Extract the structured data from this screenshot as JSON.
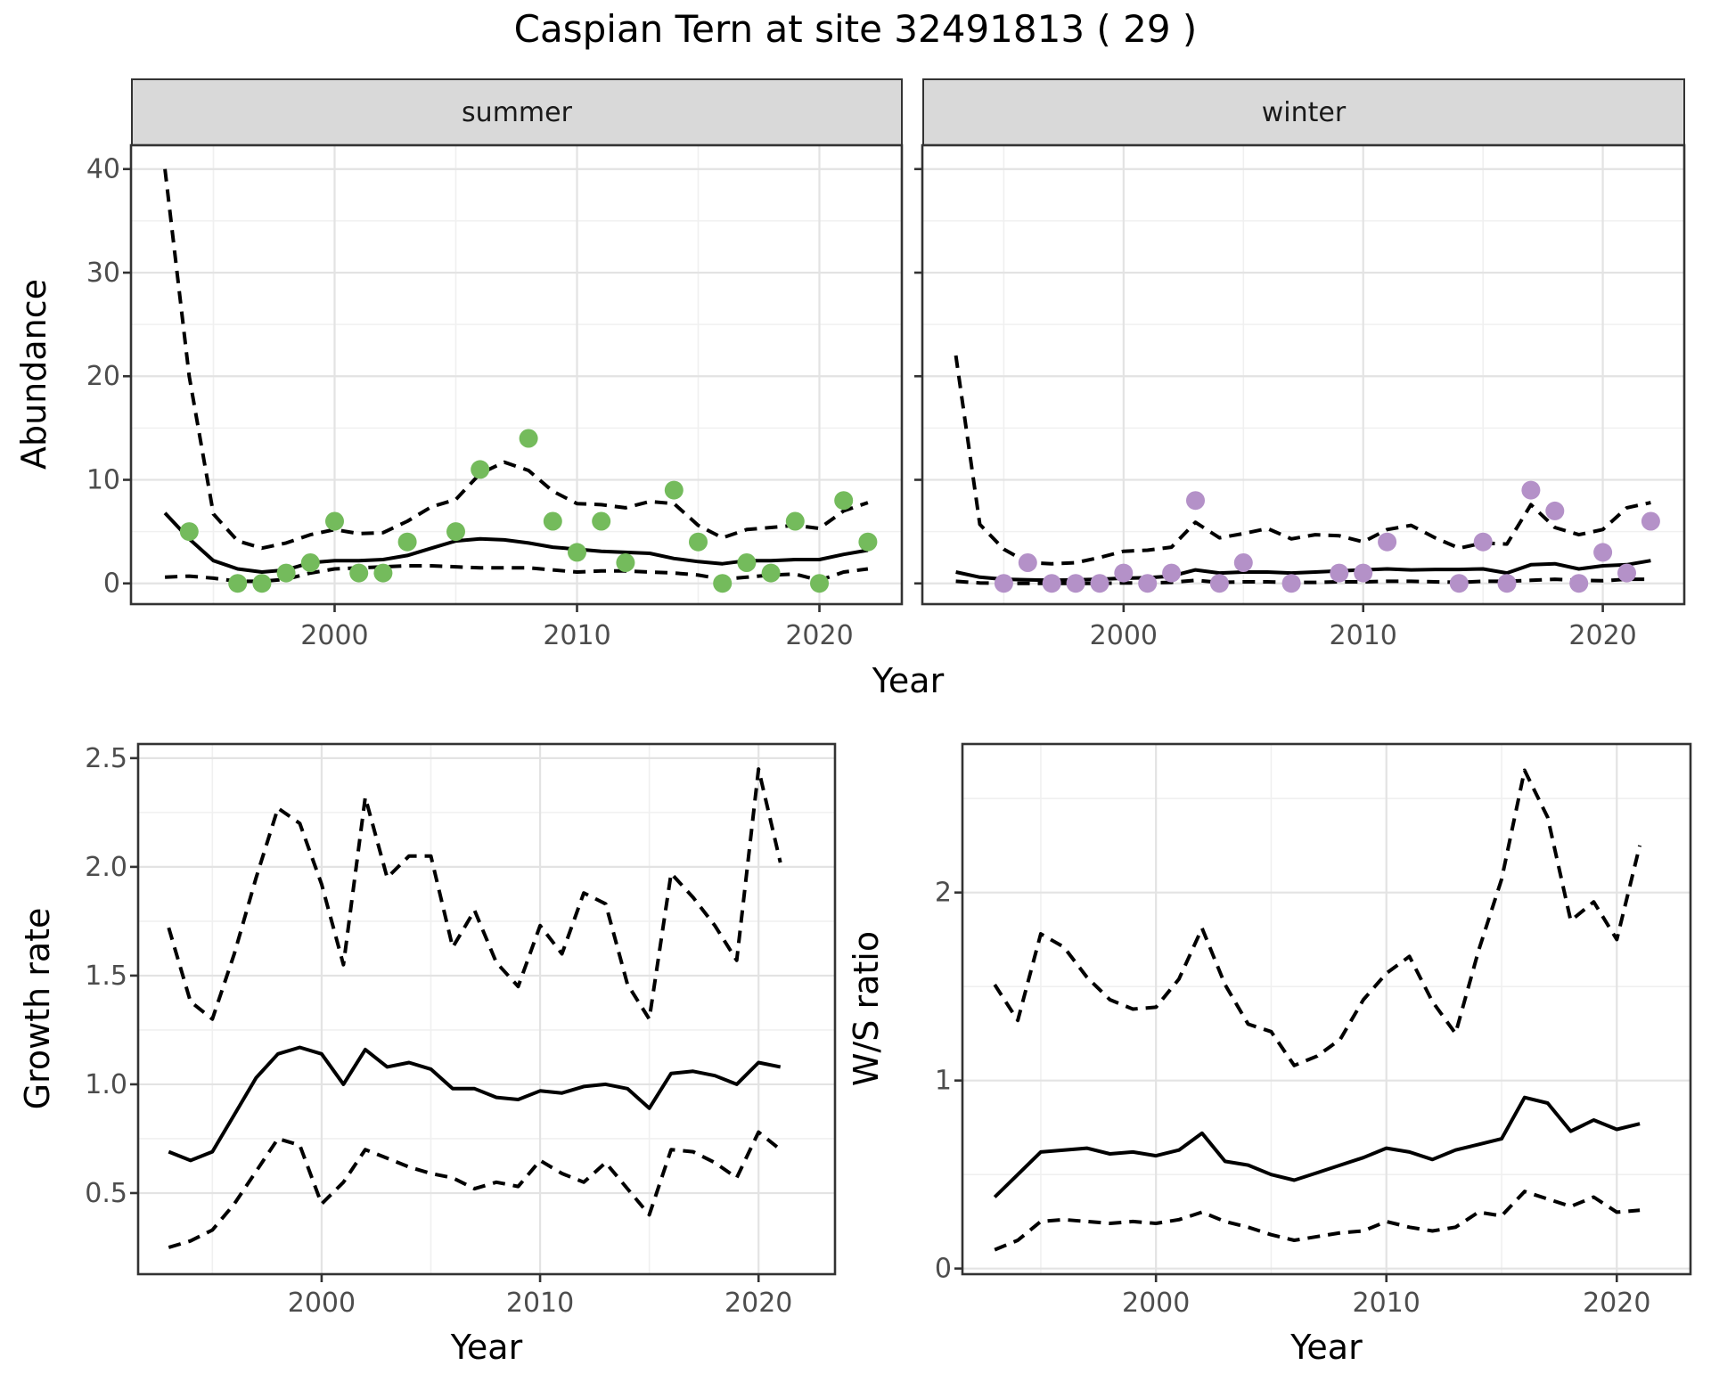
{
  "title": "Caspian Tern at site 32491813 ( 29 )",
  "facets": {
    "summer": "summer",
    "winter": "winter"
  },
  "axis_titles": {
    "abundance": "Abundance",
    "year_top": "Year",
    "growth": "Growth rate",
    "ws": "W/S ratio",
    "year_growth": "Year",
    "year_ws": "Year"
  },
  "colors": {
    "summer_point": "#74bb5c",
    "winter_point": "#b491c8",
    "line": "#000000",
    "strip_bg": "#d9d9d9",
    "grid_major": "#e3e3e3",
    "grid_minor": "#f0f0f0",
    "axis_text": "#4d4d4d",
    "panel_border": "#333333"
  },
  "chart_data": [
    {
      "id": "abundance_summer",
      "type": "line",
      "facet_label": "summer",
      "xlabel": "Year",
      "ylabel": "Abundance",
      "xlim": [
        1991.6,
        2023.4
      ],
      "ylim": [
        -2,
        42.3
      ],
      "x_major": [
        2000,
        2010,
        2020
      ],
      "x_minor": [
        1995,
        2005,
        2015
      ],
      "y_major": [
        0,
        10,
        20,
        30,
        40
      ],
      "y_minor": [
        5,
        15,
        25,
        35
      ],
      "x_tick_labels": [
        "2000",
        "2010",
        "2020"
      ],
      "y_tick_labels": [
        "0",
        "10",
        "20",
        "30",
        "40"
      ],
      "legend_position": "none",
      "grid": true,
      "years": [
        1993,
        1994,
        1995,
        1996,
        1997,
        1998,
        1999,
        2000,
        2001,
        2002,
        2003,
        2004,
        2005,
        2006,
        2007,
        2008,
        2009,
        2010,
        2011,
        2012,
        2013,
        2014,
        2015,
        2016,
        2017,
        2018,
        2019,
        2020,
        2021,
        2022
      ],
      "series": [
        {
          "name": "mean",
          "style": "solid",
          "values": [
            6.8,
            4.3,
            2.2,
            1.4,
            1.1,
            1.3,
            2.0,
            2.2,
            2.2,
            2.3,
            2.7,
            3.4,
            4.1,
            4.3,
            4.2,
            3.9,
            3.5,
            3.3,
            3.1,
            3.0,
            2.9,
            2.4,
            2.1,
            1.9,
            2.2,
            2.2,
            2.3,
            2.3,
            2.8,
            3.2
          ]
        },
        {
          "name": "upper_ci",
          "style": "dashed",
          "values": [
            40,
            20,
            6.7,
            4.1,
            3.4,
            3.9,
            4.7,
            5.2,
            4.8,
            4.9,
            6.0,
            7.4,
            8.1,
            10.6,
            11.7,
            10.9,
            8.9,
            7.7,
            7.6,
            7.3,
            7.9,
            7.7,
            5.6,
            4.4,
            5.2,
            5.4,
            5.6,
            5.3,
            7.0,
            7.8
          ]
        },
        {
          "name": "lower_ci",
          "style": "dashed",
          "values": [
            0.6,
            0.7,
            0.5,
            0.2,
            0.2,
            0.4,
            1.0,
            1.4,
            1.5,
            1.6,
            1.7,
            1.7,
            1.6,
            1.5,
            1.5,
            1.5,
            1.3,
            1.1,
            1.2,
            1.2,
            1.1,
            1.0,
            0.8,
            0.4,
            0.6,
            0.8,
            0.9,
            0.3,
            1.1,
            1.4
          ]
        }
      ],
      "points": {
        "name": "observed",
        "color_key": "summer_point",
        "data": [
          [
            1994,
            5
          ],
          [
            1996,
            0
          ],
          [
            1997,
            0
          ],
          [
            1998,
            1
          ],
          [
            1999,
            2
          ],
          [
            2000,
            6
          ],
          [
            2001,
            1
          ],
          [
            2002,
            1
          ],
          [
            2003,
            4
          ],
          [
            2005,
            5
          ],
          [
            2006,
            11
          ],
          [
            2008,
            14
          ],
          [
            2009,
            6
          ],
          [
            2010,
            3
          ],
          [
            2011,
            6
          ],
          [
            2012,
            2
          ],
          [
            2014,
            9
          ],
          [
            2015,
            4
          ],
          [
            2016,
            0
          ],
          [
            2017,
            2
          ],
          [
            2018,
            1
          ],
          [
            2019,
            6
          ],
          [
            2020,
            0
          ],
          [
            2021,
            8
          ],
          [
            2022,
            4
          ]
        ]
      }
    },
    {
      "id": "abundance_winter",
      "type": "line",
      "facet_label": "winter",
      "xlabel": "Year",
      "ylabel": "Abundance",
      "xlim": [
        1991.6,
        2023.4
      ],
      "ylim": [
        -2,
        42.3
      ],
      "x_major": [
        2000,
        2010,
        2020
      ],
      "x_minor": [
        1995,
        2005,
        2015
      ],
      "y_major": [
        0,
        10,
        20,
        30,
        40
      ],
      "y_minor": [
        5,
        15,
        25,
        35
      ],
      "x_tick_labels": [
        "2000",
        "2010",
        "2020"
      ],
      "y_tick_labels": [],
      "legend_position": "none",
      "grid": true,
      "years": [
        1993,
        1994,
        1995,
        1996,
        1997,
        1998,
        1999,
        2000,
        2001,
        2002,
        2003,
        2004,
        2005,
        2006,
        2007,
        2008,
        2009,
        2010,
        2011,
        2012,
        2013,
        2014,
        2015,
        2016,
        2017,
        2018,
        2019,
        2020,
        2021,
        2022
      ],
      "series": [
        {
          "name": "mean",
          "style": "solid",
          "values": [
            1.1,
            0.6,
            0.4,
            0.35,
            0.3,
            0.35,
            0.4,
            0.5,
            0.55,
            0.7,
            1.3,
            1.0,
            1.1,
            1.1,
            1.0,
            1.1,
            1.2,
            1.3,
            1.4,
            1.3,
            1.35,
            1.35,
            1.4,
            1.0,
            1.8,
            1.9,
            1.4,
            1.7,
            1.8,
            2.2
          ]
        },
        {
          "name": "upper_ci",
          "style": "dashed",
          "values": [
            22,
            5.7,
            3.3,
            2.0,
            1.9,
            2.0,
            2.5,
            3.1,
            3.2,
            3.5,
            5.9,
            4.4,
            4.8,
            5.3,
            4.3,
            4.7,
            4.6,
            4.0,
            5.2,
            5.6,
            4.4,
            3.4,
            3.9,
            3.8,
            7.6,
            5.4,
            4.7,
            5.2,
            7.3,
            7.8
          ]
        },
        {
          "name": "lower_ci",
          "style": "dashed",
          "values": [
            0.2,
            0.05,
            0,
            0,
            0,
            0,
            0,
            0.05,
            0.05,
            0.1,
            0.3,
            0.1,
            0.15,
            0.15,
            0.1,
            0.1,
            0.15,
            0.15,
            0.2,
            0.2,
            0.15,
            0.1,
            0.2,
            0.2,
            0.3,
            0.4,
            0.3,
            0.25,
            0.4,
            0.4
          ]
        }
      ],
      "points": {
        "name": "observed",
        "color_key": "winter_point",
        "data": [
          [
            1995,
            0
          ],
          [
            1996,
            2
          ],
          [
            1997,
            0
          ],
          [
            1998,
            0
          ],
          [
            1999,
            0
          ],
          [
            2000,
            1
          ],
          [
            2001,
            0
          ],
          [
            2002,
            1
          ],
          [
            2003,
            8
          ],
          [
            2004,
            0
          ],
          [
            2005,
            2
          ],
          [
            2007,
            0
          ],
          [
            2009,
            1
          ],
          [
            2010,
            1
          ],
          [
            2011,
            4
          ],
          [
            2014,
            0
          ],
          [
            2015,
            4
          ],
          [
            2016,
            0
          ],
          [
            2017,
            9
          ],
          [
            2018,
            7
          ],
          [
            2019,
            0
          ],
          [
            2020,
            3
          ],
          [
            2021,
            1
          ],
          [
            2022,
            6
          ]
        ]
      }
    },
    {
      "id": "growth_rate",
      "type": "line",
      "facet_label": "",
      "xlabel": "Year",
      "ylabel": "Growth rate",
      "xlim": [
        1991.6,
        2023.5
      ],
      "ylim": [
        0.127,
        2.565
      ],
      "x_major": [
        2000,
        2010,
        2020
      ],
      "x_minor": [
        1995,
        2005,
        2015
      ],
      "y_major": [
        0.5,
        1.0,
        1.5,
        2.0,
        2.5
      ],
      "y_minor": [
        0.75,
        1.25,
        1.75,
        2.25
      ],
      "x_tick_labels": [
        "2000",
        "2010",
        "2020"
      ],
      "y_tick_labels": [
        "0.5",
        "1.0",
        "1.5",
        "2.0",
        "2.5"
      ],
      "legend_position": "none",
      "grid": true,
      "years": [
        1993,
        1994,
        1995,
        1996,
        1997,
        1998,
        1999,
        2000,
        2001,
        2002,
        2003,
        2004,
        2005,
        2006,
        2007,
        2008,
        2009,
        2010,
        2011,
        2012,
        2013,
        2014,
        2015,
        2016,
        2017,
        2018,
        2019,
        2020,
        2021
      ],
      "series": [
        {
          "name": "mean",
          "style": "solid",
          "values": [
            0.69,
            0.65,
            0.69,
            0.86,
            1.03,
            1.14,
            1.17,
            1.14,
            1.0,
            1.16,
            1.08,
            1.1,
            1.07,
            0.98,
            0.98,
            0.94,
            0.93,
            0.97,
            0.96,
            0.99,
            1.0,
            0.98,
            0.89,
            1.05,
            1.06,
            1.04,
            1.0,
            1.1,
            1.08
          ]
        },
        {
          "name": "upper_ci",
          "style": "dashed",
          "values": [
            1.72,
            1.38,
            1.3,
            1.6,
            1.95,
            2.27,
            2.2,
            1.92,
            1.55,
            2.32,
            1.95,
            2.05,
            2.05,
            1.63,
            1.8,
            1.56,
            1.45,
            1.73,
            1.6,
            1.88,
            1.83,
            1.46,
            1.3,
            1.97,
            1.86,
            1.73,
            1.57,
            2.45,
            2.02
          ]
        },
        {
          "name": "lower_ci",
          "style": "dashed",
          "values": [
            0.25,
            0.28,
            0.33,
            0.45,
            0.6,
            0.75,
            0.72,
            0.45,
            0.55,
            0.7,
            0.66,
            0.62,
            0.59,
            0.57,
            0.52,
            0.55,
            0.53,
            0.65,
            0.59,
            0.55,
            0.64,
            0.52,
            0.4,
            0.7,
            0.69,
            0.64,
            0.57,
            0.78,
            0.7
          ]
        }
      ],
      "points": null
    },
    {
      "id": "ws_ratio",
      "type": "line",
      "facet_label": "",
      "xlabel": "Year",
      "ylabel": "W/S ratio",
      "xlim": [
        1991.6,
        2023.2
      ],
      "ylim": [
        -0.03,
        2.79
      ],
      "x_major": [
        2000,
        2010,
        2020
      ],
      "x_minor": [
        1995,
        2005,
        2015
      ],
      "y_major": [
        0,
        1,
        2
      ],
      "y_minor": [
        0.5,
        1.5,
        2.5
      ],
      "x_tick_labels": [
        "2000",
        "2010",
        "2020"
      ],
      "y_tick_labels": [
        "0",
        "1",
        "2"
      ],
      "legend_position": "none",
      "grid": true,
      "years": [
        1993,
        1994,
        1995,
        1996,
        1997,
        1998,
        1999,
        2000,
        2001,
        2002,
        2003,
        2004,
        2005,
        2006,
        2007,
        2008,
        2009,
        2010,
        2011,
        2012,
        2013,
        2014,
        2015,
        2016,
        2017,
        2018,
        2019,
        2020,
        2021
      ],
      "series": [
        {
          "name": "mean",
          "style": "solid",
          "values": [
            0.38,
            0.5,
            0.62,
            0.63,
            0.64,
            0.61,
            0.62,
            0.6,
            0.63,
            0.72,
            0.57,
            0.55,
            0.5,
            0.47,
            0.51,
            0.55,
            0.59,
            0.64,
            0.62,
            0.58,
            0.63,
            0.66,
            0.69,
            0.91,
            0.88,
            0.73,
            0.79,
            0.74,
            0.77
          ]
        },
        {
          "name": "upper_ci",
          "style": "dashed",
          "values": [
            1.51,
            1.32,
            1.78,
            1.71,
            1.55,
            1.43,
            1.38,
            1.39,
            1.54,
            1.81,
            1.51,
            1.3,
            1.26,
            1.08,
            1.13,
            1.22,
            1.43,
            1.57,
            1.66,
            1.42,
            1.25,
            1.69,
            2.07,
            2.65,
            2.4,
            1.85,
            1.95,
            1.75,
            2.25
          ]
        },
        {
          "name": "lower_ci",
          "style": "dashed",
          "values": [
            0.1,
            0.15,
            0.25,
            0.26,
            0.25,
            0.24,
            0.25,
            0.24,
            0.26,
            0.3,
            0.25,
            0.22,
            0.18,
            0.15,
            0.17,
            0.19,
            0.2,
            0.25,
            0.22,
            0.2,
            0.22,
            0.3,
            0.28,
            0.41,
            0.37,
            0.33,
            0.38,
            0.3,
            0.31
          ]
        }
      ],
      "points": null
    }
  ]
}
